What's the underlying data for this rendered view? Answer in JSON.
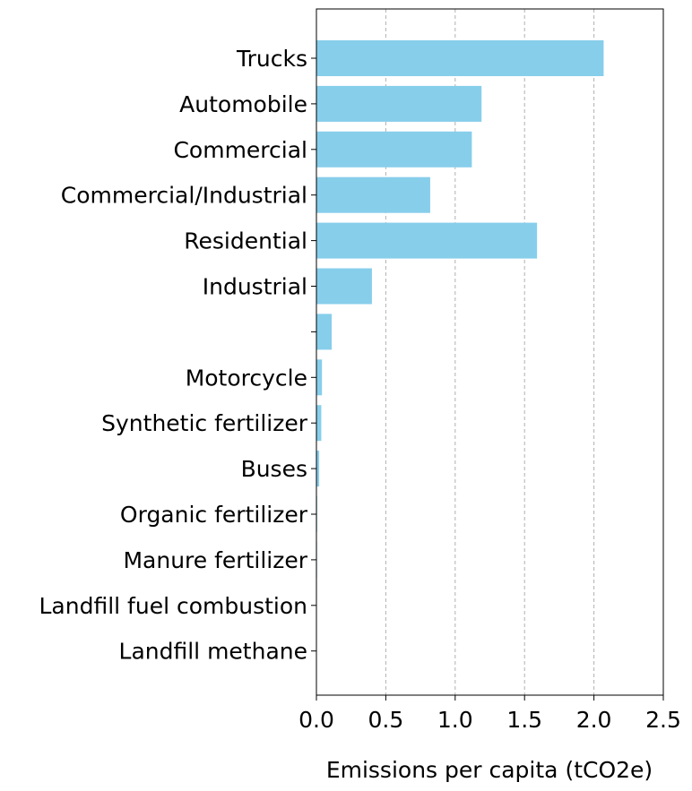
{
  "chart_data": {
    "type": "bar",
    "orientation": "horizontal",
    "title": "",
    "xlabel": "Emissions per capita (tCO2e)",
    "ylabel": "",
    "xlim": [
      0,
      2.5
    ],
    "xticks": [
      0.0,
      0.5,
      1.0,
      1.5,
      2.0,
      2.5
    ],
    "xtick_labels": [
      "0.0",
      "0.5",
      "1.0",
      "1.5",
      "2.0",
      "2.5"
    ],
    "grid": "x-axis dashed",
    "legend": "none",
    "bar_color": "#87CEEB",
    "categories": [
      "Trucks",
      "Automobile",
      "Commercial",
      "Commercial/Industrial",
      "Residential",
      "Industrial",
      "",
      "Motorcycle",
      "Synthetic fertilizer",
      "Buses",
      "Organic fertilizer",
      "Manure fertilizer",
      "Landfill fuel combustion",
      "Landfill methane"
    ],
    "values": [
      2.07,
      1.19,
      1.12,
      0.82,
      1.59,
      0.4,
      0.11,
      0.04,
      0.035,
      0.02,
      0.005,
      0.004,
      0.002,
      0.001
    ]
  }
}
